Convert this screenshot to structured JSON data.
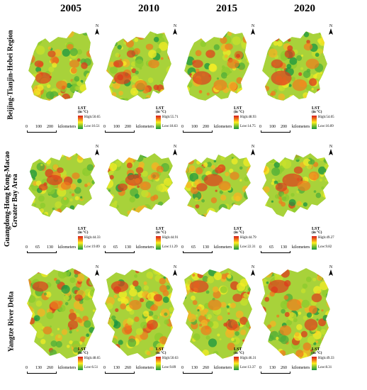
{
  "columns": [
    "2005",
    "2010",
    "2015",
    "2020"
  ],
  "rows": [
    {
      "label": "Beijing-Tianjin-Hebei Region",
      "scale": [
        "0",
        "100",
        "200",
        "kilometers"
      ],
      "legends": [
        {
          "high": "High:50.65",
          "low": "Low:16.51"
        },
        {
          "high": "High:55.71",
          "low": "Low:18.63"
        },
        {
          "high": "High:48.93",
          "low": "Low:14.75"
        },
        {
          "high": "High:54.05",
          "low": "Low:16.09"
        }
      ]
    },
    {
      "label": "Guangdong-Hong Kong-Macao Greater Bay Area",
      "label_line1": "Guangdong-Hong Kong-Macao",
      "label_line2": "Greater Bay Area",
      "scale": [
        "0",
        "65",
        "130",
        "kilometers"
      ],
      "legends": [
        {
          "high": "High:44.33",
          "low": "Low:19.09"
        },
        {
          "high": "High:44.91",
          "low": "Low:11.29"
        },
        {
          "high": "High:44.79",
          "low": "Low:22.31"
        },
        {
          "high": "High:49.27",
          "low": "Low:9.82"
        }
      ]
    },
    {
      "label": "Yangtze River Delta",
      "scale": [
        "0",
        "130",
        "260",
        "kilometers"
      ],
      "legends": [
        {
          "high": "High:48.65",
          "low": "Low:6.51"
        },
        {
          "high": "High:50.63",
          "low": "Low:9.89"
        },
        {
          "high": "High:46.31",
          "low": "Low:13.37"
        },
        {
          "high": "High:49.33",
          "low": "Low:8.31"
        }
      ]
    }
  ],
  "legend_title": "LST",
  "legend_unit": "(in °C)",
  "north_label": "N",
  "colors": {
    "high": "#d7191c",
    "mid": "#fdf022",
    "low": "#1a9641"
  }
}
